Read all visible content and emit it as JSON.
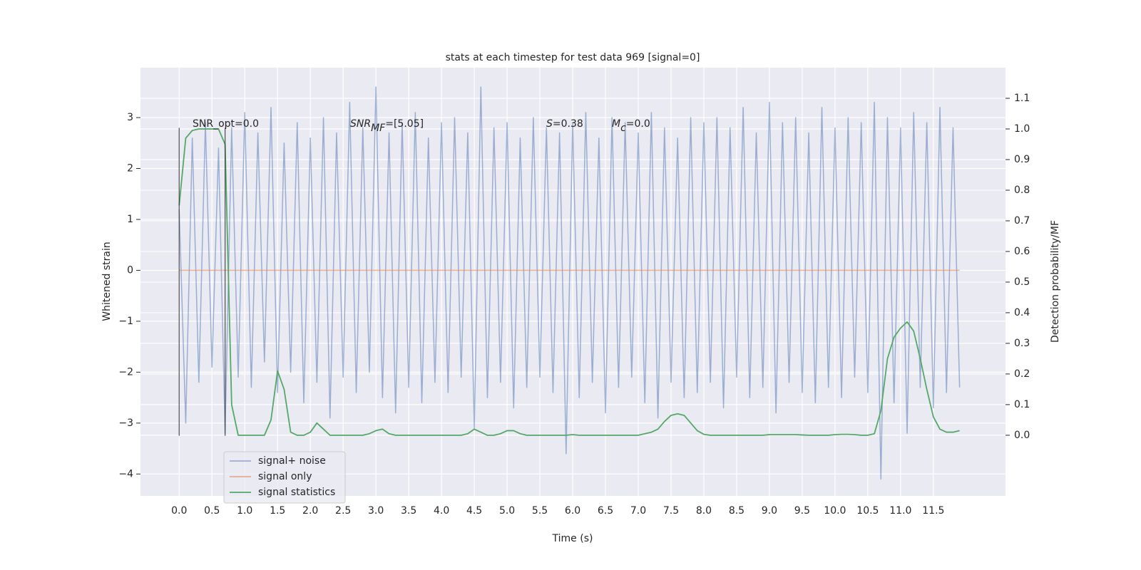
{
  "chart_data": {
    "type": "line",
    "title": "stats at each timestep for test data 969 [signal=0]",
    "xlabel": "Time (s)",
    "ylabel": "Whitened strain",
    "y2label": "Detection probability/MF",
    "annotations": [
      {
        "parts": [
          "SNR_opt=0.0"
        ]
      },
      {
        "parts": [
          "SNR",
          "MF",
          "=[5.05]"
        ]
      },
      {
        "parts": [
          "S",
          "=0.38"
        ]
      },
      {
        "parts": [
          "M",
          "c",
          "=0.0"
        ]
      }
    ],
    "vlines": [
      {
        "x": 0,
        "ymin": -3.25,
        "ymax": 2.8
      },
      {
        "x": 0.7,
        "ymin": -3.25,
        "ymax": 2.8
      }
    ],
    "x": [
      0.0,
      0.1,
      0.2,
      0.3,
      0.4,
      0.5,
      0.6,
      0.7,
      0.8,
      0.9,
      1.0,
      1.1,
      1.2,
      1.3,
      1.4,
      1.5,
      1.6,
      1.7,
      1.8,
      1.9,
      2.0,
      2.1,
      2.2,
      2.3,
      2.4,
      2.5,
      2.6,
      2.7,
      2.8,
      2.9,
      3.0,
      3.1,
      3.2,
      3.3,
      3.4,
      3.5,
      3.6,
      3.7,
      3.8,
      3.9,
      4.0,
      4.1,
      4.2,
      4.3,
      4.4,
      4.5,
      4.6,
      4.7,
      4.8,
      4.9,
      5.0,
      5.1,
      5.2,
      5.3,
      5.4,
      5.5,
      5.6,
      5.7,
      5.8,
      5.9,
      6.0,
      6.1,
      6.2,
      6.3,
      6.4,
      6.5,
      6.6,
      6.7,
      6.8,
      6.9,
      7.0,
      7.1,
      7.2,
      7.3,
      7.4,
      7.5,
      7.6,
      7.7,
      7.8,
      7.9,
      8.0,
      8.1,
      8.2,
      8.3,
      8.4,
      8.5,
      8.6,
      8.7,
      8.8,
      8.9,
      9.0,
      9.1,
      9.2,
      9.3,
      9.4,
      9.5,
      9.6,
      9.7,
      9.8,
      9.9,
      10.0,
      10.1,
      10.2,
      10.3,
      10.4,
      10.5,
      10.6,
      10.7,
      10.8,
      10.9,
      11.0,
      11.1,
      11.2,
      11.3,
      11.4,
      11.5,
      11.6,
      11.7,
      11.8,
      11.9
    ],
    "series": [
      {
        "name": "signal+ noise",
        "color": "#4c72b0",
        "axis": "y",
        "values": [
          1.2,
          -3.0,
          2.6,
          -2.2,
          2.9,
          -1.9,
          2.4,
          -3.2,
          2.8,
          -2.1,
          3.1,
          -2.3,
          2.7,
          -1.8,
          3.2,
          -2.4,
          2.5,
          -2.0,
          2.9,
          -2.6,
          2.6,
          -2.2,
          3.0,
          -2.9,
          2.7,
          -2.1,
          3.3,
          -2.4,
          2.8,
          -2.0,
          3.6,
          -2.5,
          2.7,
          -2.8,
          2.9,
          -2.3,
          3.1,
          -2.6,
          2.6,
          -2.2,
          2.9,
          -2.4,
          3.0,
          -2.1,
          2.7,
          -3.1,
          3.6,
          -2.5,
          2.8,
          -2.2,
          2.9,
          -2.7,
          2.6,
          -2.3,
          3.0,
          -2.1,
          2.8,
          -2.4,
          2.7,
          -3.6,
          2.9,
          -2.5,
          3.1,
          -2.2,
          2.6,
          -2.8,
          3.0,
          -2.3,
          2.9,
          -2.1,
          2.7,
          -2.6,
          3.1,
          -2.9,
          2.8,
          -2.2,
          2.6,
          -2.5,
          3.0,
          -2.4,
          2.9,
          -2.2,
          3.0,
          -2.7,
          2.8,
          -2.1,
          3.2,
          -2.5,
          2.7,
          -2.3,
          3.3,
          -2.8,
          2.9,
          -2.2,
          3.0,
          -2.4,
          2.7,
          -2.6,
          3.2,
          -2.3,
          2.8,
          -2.5,
          3.0,
          -2.1,
          2.9,
          -2.4,
          3.3,
          -4.1,
          3.0,
          -2.6,
          2.8,
          -3.2,
          3.1,
          -2.3,
          2.9,
          -2.7,
          3.2,
          -2.4,
          2.8,
          -2.3
        ]
      },
      {
        "name": "signal only",
        "color": "#dd8452",
        "axis": "y",
        "values": [
          0,
          0,
          0,
          0,
          0,
          0,
          0,
          0,
          0,
          0,
          0,
          0,
          0,
          0,
          0,
          0,
          0,
          0,
          0,
          0,
          0,
          0,
          0,
          0,
          0,
          0,
          0,
          0,
          0,
          0,
          0,
          0,
          0,
          0,
          0,
          0,
          0,
          0,
          0,
          0,
          0,
          0,
          0,
          0,
          0,
          0,
          0,
          0,
          0,
          0,
          0,
          0,
          0,
          0,
          0,
          0,
          0,
          0,
          0,
          0,
          0,
          0,
          0,
          0,
          0,
          0,
          0,
          0,
          0,
          0,
          0,
          0,
          0,
          0,
          0,
          0,
          0,
          0,
          0,
          0,
          0,
          0,
          0,
          0,
          0,
          0,
          0,
          0,
          0,
          0,
          0,
          0,
          0,
          0,
          0,
          0,
          0,
          0,
          0,
          0,
          0,
          0,
          0,
          0,
          0,
          0,
          0,
          0,
          0,
          0,
          0,
          0,
          0,
          0,
          0,
          0,
          0,
          0,
          0,
          0
        ]
      },
      {
        "name": "signal statistics",
        "color": "#55a868",
        "axis": "y2",
        "values": [
          0.75,
          0.97,
          0.995,
          1.0,
          1.0,
          1.0,
          1.0,
          0.95,
          0.1,
          0.0,
          0.0,
          0.0,
          0.0,
          0.0,
          0.05,
          0.21,
          0.15,
          0.01,
          0.0,
          0.0,
          0.01,
          0.04,
          0.02,
          0.0,
          0.0,
          0.0,
          0.0,
          0.0,
          0.0,
          0.005,
          0.015,
          0.02,
          0.005,
          0.0,
          0.0,
          0.0,
          0.0,
          0.0,
          0.0,
          0.0,
          0.0,
          0.0,
          0.0,
          0.0,
          0.005,
          0.02,
          0.01,
          0.0,
          0.0,
          0.005,
          0.015,
          0.015,
          0.005,
          0.0,
          0.0,
          0.0,
          0.0,
          0.0,
          0.0,
          0.0,
          0.002,
          0.0,
          0.0,
          0.0,
          0.0,
          0.0,
          0.0,
          0.0,
          0.0,
          0.0,
          0.0,
          0.005,
          0.01,
          0.02,
          0.045,
          0.065,
          0.07,
          0.065,
          0.04,
          0.015,
          0.003,
          0.0,
          0.0,
          0.0,
          0.0,
          0.0,
          0.0,
          0.0,
          0.0,
          0.0,
          0.002,
          0.002,
          0.002,
          0.002,
          0.002,
          0.001,
          0.0,
          0.0,
          0.0,
          0.0,
          0.002,
          0.003,
          0.003,
          0.002,
          0.0,
          0.0,
          0.005,
          0.08,
          0.25,
          0.32,
          0.35,
          0.37,
          0.34,
          0.25,
          0.15,
          0.06,
          0.02,
          0.01,
          0.01,
          0.015
        ]
      }
    ],
    "xlim": [
      -0.59,
      12.6
    ],
    "xticks": [
      {
        "value": 0,
        "label": "0.0"
      },
      {
        "value": 0.5,
        "label": "0.5"
      },
      {
        "value": 1,
        "label": "1.0"
      },
      {
        "value": 1.5,
        "label": "1.5"
      },
      {
        "value": 2,
        "label": "2.0"
      },
      {
        "value": 2.5,
        "label": "2.5"
      },
      {
        "value": 3,
        "label": "3.0"
      },
      {
        "value": 3.5,
        "label": "3.5"
      },
      {
        "value": 4,
        "label": "4.0"
      },
      {
        "value": 4.5,
        "label": "4.5"
      },
      {
        "value": 5,
        "label": "5.0"
      },
      {
        "value": 5.5,
        "label": "5.5"
      },
      {
        "value": 6,
        "label": "6.0"
      },
      {
        "value": 6.5,
        "label": "6.5"
      },
      {
        "value": 7,
        "label": "7.0"
      },
      {
        "value": 7.5,
        "label": "7.5"
      },
      {
        "value": 8,
        "label": "8.0"
      },
      {
        "value": 8.5,
        "label": "8.5"
      },
      {
        "value": 9,
        "label": "9.0"
      },
      {
        "value": 9.5,
        "label": "9.5"
      },
      {
        "value": 10,
        "label": "10.0"
      },
      {
        "value": 10.5,
        "label": "10.5"
      },
      {
        "value": 11,
        "label": "11.0"
      },
      {
        "value": 11.5,
        "label": "11.5"
      }
    ],
    "ylim": [
      -4.43,
      3.98
    ],
    "yticks": [
      {
        "value": -4,
        "label": "−4"
      },
      {
        "value": -3,
        "label": "−3"
      },
      {
        "value": -2,
        "label": "−2"
      },
      {
        "value": -1,
        "label": "−1"
      },
      0,
      1,
      2,
      3
    ],
    "y2lim": [
      -0.198,
      1.2
    ],
    "y2ticks": [
      {
        "value": 0,
        "label": "0.0"
      },
      {
        "value": 0.1,
        "label": "0.1"
      },
      {
        "value": 0.2,
        "label": "0.2"
      },
      {
        "value": 0.3,
        "label": "0.3"
      },
      {
        "value": 0.4,
        "label": "0.4"
      },
      {
        "value": 0.5,
        "label": "0.5"
      },
      {
        "value": 0.6,
        "label": "0.6"
      },
      {
        "value": 0.7,
        "label": "0.7"
      },
      {
        "value": 0.8,
        "label": "0.8"
      },
      {
        "value": 0.9,
        "label": "0.9"
      },
      {
        "value": 1,
        "label": "1.0"
      },
      {
        "value": 1.1,
        "label": "1.1"
      }
    ],
    "grid": true,
    "legend": "lower left"
  }
}
